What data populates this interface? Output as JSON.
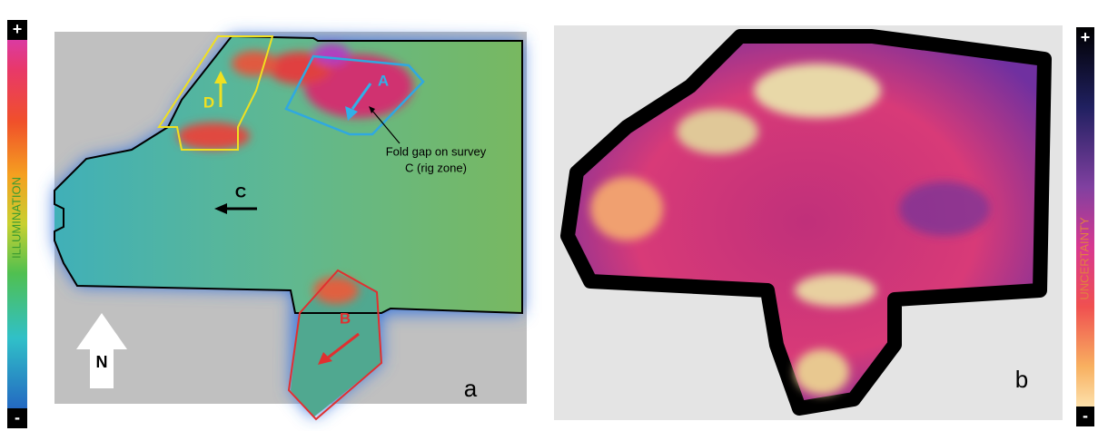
{
  "panel_a": {
    "colorbar": {
      "top": "+",
      "bottom": "-",
      "label": "ILLUMINATION"
    },
    "zones": {
      "a": "A",
      "b": "B",
      "c": "C",
      "d": "D"
    },
    "annotation": [
      "Fold gap on survey",
      "C (rig zone)"
    ],
    "north": "N",
    "panel_label": "a"
  },
  "panel_b": {
    "colorbar": {
      "top": "+",
      "bottom": "-",
      "label": "UNCERTAINTY"
    },
    "panel_label": "b"
  }
}
